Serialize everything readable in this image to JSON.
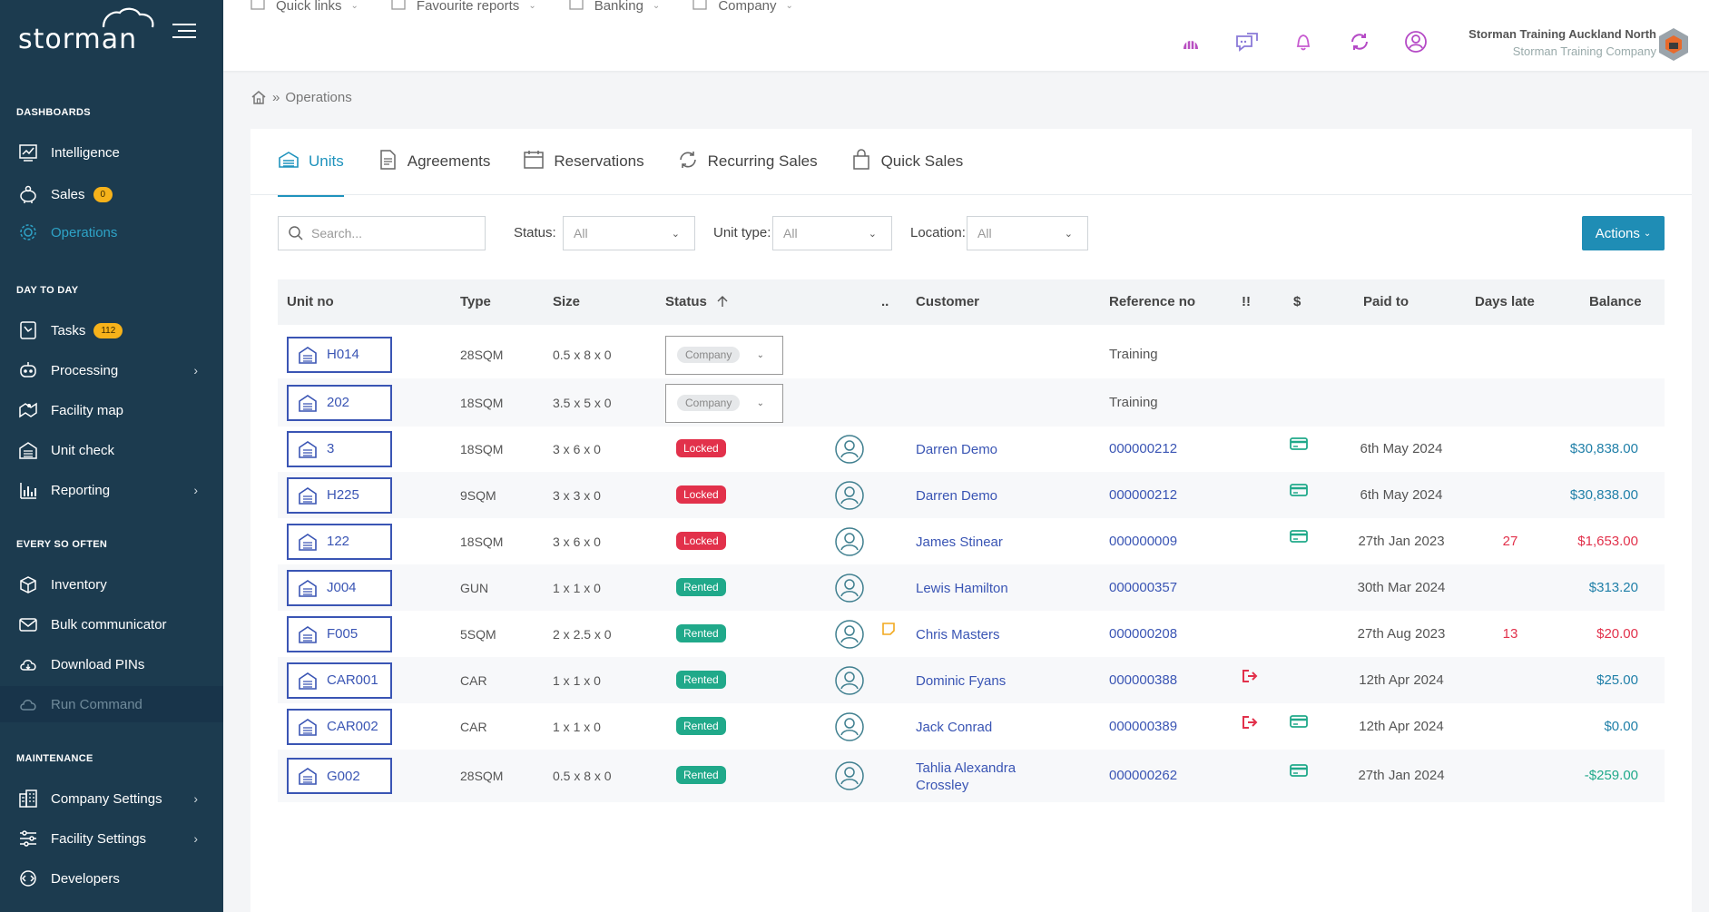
{
  "sidebar": {
    "logo": "storman",
    "sections": [
      {
        "title": "DASHBOARDS",
        "items": [
          {
            "label": "Intelligence",
            "icon": "chart-line-icon"
          },
          {
            "label": "Sales",
            "icon": "piggy-bank-icon",
            "badge": "0"
          },
          {
            "label": "Operations",
            "icon": "gear-icon",
            "active": true
          }
        ]
      },
      {
        "title": "DAY TO DAY",
        "items": [
          {
            "label": "Tasks",
            "icon": "clock-icon",
            "badge": "112"
          },
          {
            "label": "Processing",
            "icon": "robot-icon",
            "chevron": true
          },
          {
            "label": "Facility map",
            "icon": "map-icon"
          },
          {
            "label": "Unit check",
            "icon": "garage-icon"
          },
          {
            "label": "Reporting",
            "icon": "bar-chart-icon",
            "chevron": true
          }
        ]
      },
      {
        "title": "EVERY SO OFTEN",
        "items": [
          {
            "label": "Inventory",
            "icon": "box-icon"
          },
          {
            "label": "Bulk communicator",
            "icon": "envelope-icon"
          },
          {
            "label": "Download PINs",
            "icon": "cloud-download-icon"
          },
          {
            "label": "Run Command",
            "icon": "cloud-icon",
            "dim": true
          }
        ]
      },
      {
        "title": "MAINTENANCE",
        "items": [
          {
            "label": "Company Settings",
            "icon": "building-icon",
            "chevron": true
          },
          {
            "label": "Facility Settings",
            "icon": "sliders-icon",
            "chevron": true
          },
          {
            "label": "Developers",
            "icon": "code-icon"
          }
        ]
      }
    ]
  },
  "topbar": {
    "menus": [
      "Quick links",
      "Favourite reports",
      "Banking",
      "Company"
    ],
    "company_name": "Storman Training Auckland North",
    "company_sub": "Storman Training Company"
  },
  "breadcrumb": {
    "current": "Operations"
  },
  "tabs": [
    "Units",
    "Agreements",
    "Reservations",
    "Recurring Sales",
    "Quick Sales"
  ],
  "filters": {
    "search_placeholder": "Search...",
    "status_label": "Status:",
    "status_value": "All",
    "unit_type_label": "Unit type:",
    "unit_type_value": "All",
    "location_label": "Location:",
    "location_value": "All",
    "actions_label": "Actions"
  },
  "table": {
    "headers": {
      "unit_no": "Unit no",
      "type": "Type",
      "size": "Size",
      "status": "Status",
      "dots": "..",
      "customer": "Customer",
      "reference": "Reference no",
      "alert": "!!",
      "dollar": "$",
      "paid_to": "Paid to",
      "days_late": "Days late",
      "balance": "Balance"
    },
    "rows": [
      {
        "unit": "H014",
        "type": "28SQM",
        "size": "0.5 x 8 x 0",
        "status": "Company",
        "status_kind": "select",
        "customer": "",
        "reference": "Training",
        "ref_plain": true,
        "alert": false,
        "card": false,
        "paid_to": "",
        "days_late": "",
        "balance": "",
        "bal_kind": ""
      },
      {
        "unit": "202",
        "type": "18SQM",
        "size": "3.5 x 5 x 0",
        "status": "Company",
        "status_kind": "select",
        "customer": "",
        "reference": "Training",
        "ref_plain": true,
        "alert": false,
        "card": false,
        "paid_to": "",
        "days_late": "",
        "balance": "",
        "bal_kind": ""
      },
      {
        "unit": "3",
        "type": "18SQM",
        "size": "3 x 6 x 0",
        "status": "Locked",
        "status_kind": "locked",
        "customer": "Darren Demo",
        "reference": "000000212",
        "alert": false,
        "card": true,
        "paid_to": "6th May 2024",
        "days_late": "",
        "balance": "$30,838.00",
        "bal_kind": "pos"
      },
      {
        "unit": "H225",
        "type": "9SQM",
        "size": "3 x 3 x 0",
        "status": "Locked",
        "status_kind": "locked",
        "customer": "Darren Demo",
        "reference": "000000212",
        "alert": false,
        "card": true,
        "paid_to": "6th May 2024",
        "days_late": "",
        "balance": "$30,838.00",
        "bal_kind": "pos"
      },
      {
        "unit": "122",
        "type": "18SQM",
        "size": "3 x 6 x 0",
        "status": "Locked",
        "status_kind": "locked",
        "customer": "James Stinear",
        "reference": "000000009",
        "alert": false,
        "card": true,
        "paid_to": "27th Jan 2023",
        "days_late": "27",
        "balance": "$1,653.00",
        "bal_kind": "late"
      },
      {
        "unit": "J004",
        "type": "GUN",
        "size": "1 x 1 x 0",
        "status": "Rented",
        "status_kind": "rented",
        "customer": "Lewis Hamilton",
        "reference": "000000357",
        "alert": false,
        "card": false,
        "paid_to": "30th Mar 2024",
        "days_late": "",
        "balance": "$313.20",
        "bal_kind": "pos"
      },
      {
        "unit": "F005",
        "type": "5SQM",
        "size": "2 x 2.5 x 0",
        "status": "Rented",
        "status_kind": "rented",
        "customer": "Chris Masters",
        "reference": "000000208",
        "note": true,
        "alert": false,
        "card": false,
        "paid_to": "27th Aug 2023",
        "days_late": "13",
        "balance": "$20.00",
        "bal_kind": "late"
      },
      {
        "unit": "CAR001",
        "type": "CAR",
        "size": "1 x 1 x 0",
        "status": "Rented",
        "status_kind": "rented",
        "customer": "Dominic Fyans",
        "reference": "000000388",
        "alert": true,
        "card": false,
        "paid_to": "12th Apr 2024",
        "days_late": "",
        "balance": "$25.00",
        "bal_kind": "pos"
      },
      {
        "unit": "CAR002",
        "type": "CAR",
        "size": "1 x 1 x 0",
        "status": "Rented",
        "status_kind": "rented",
        "customer": "Jack Conrad",
        "reference": "000000389",
        "alert": true,
        "card": true,
        "paid_to": "12th Apr 2024",
        "days_late": "",
        "balance": "$0.00",
        "bal_kind": "pos"
      },
      {
        "unit": "G002",
        "type": "28SQM",
        "size": "0.5 x 8 x 0",
        "status": "Rented",
        "status_kind": "rented",
        "customer": "Tahlia Alexandra Crossley",
        "reference": "000000262",
        "alert": false,
        "card": true,
        "paid_to": "27th Jan 2024",
        "days_late": "",
        "balance": "-$259.00",
        "bal_kind": "neg"
      }
    ]
  },
  "colors": {
    "sidebar": "#1c3b4f",
    "accent": "#1f93bd",
    "link": "#3a55b4",
    "locked": "#e2314b",
    "rented": "#20a98a",
    "late": "#e2314b",
    "balance": "#1f7fa8",
    "negative": "#20a98a"
  }
}
